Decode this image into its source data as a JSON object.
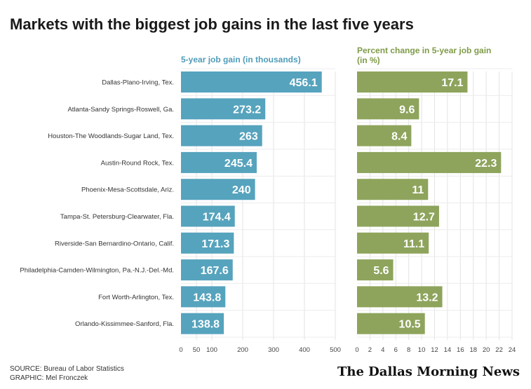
{
  "title": "Markets with the biggest job gains in the last five years",
  "source": "SOURCE: Bureau of Labor Statistics",
  "graphic": "GRAPHIC: Mel Fronczek",
  "logo_text": "The Dallas Morning News",
  "chart_data": [
    {
      "type": "bar",
      "orientation": "horizontal",
      "title": "5-year job gain (in thousands)",
      "categories": [
        "Dallas-Plano-Irving, Tex.",
        "Atlanta-Sandy Springs-Roswell, Ga.",
        "Houston-The Woodlands-Sugar Land, Tex.",
        "Austin-Round Rock, Tex.",
        "Phoenix-Mesa-Scottsdale, Ariz.",
        "Tampa-St. Petersburg-Clearwater, Fla.",
        "Riverside-San Bernardino-Ontario, Calif.",
        "Philadelphia-Camden-Wilmington, Pa.-N.J.-Del.-Md.",
        "Fort Worth-Arlington, Tex.",
        "Orlando-Kissimmee-Sanford, Fla."
      ],
      "values": [
        456.1,
        273.2,
        263,
        245.4,
        240,
        174.4,
        171.3,
        167.6,
        143.8,
        138.8
      ],
      "labels": [
        "456.1",
        "273.2",
        "263",
        "245.4",
        "240",
        "174.4",
        "171.3",
        "167.6",
        "143.8",
        "138.8"
      ],
      "xlim": [
        0,
        500
      ],
      "ticks": [
        0,
        50,
        100,
        200,
        300,
        400,
        500
      ],
      "color": "#56a3bd",
      "title_color": "#4f9cb8",
      "grid": true
    },
    {
      "type": "bar",
      "orientation": "horizontal",
      "title": "Percent change in 5-year job gain (in %)",
      "values": [
        17.1,
        9.6,
        8.4,
        22.3,
        11,
        12.7,
        11.1,
        5.6,
        13.2,
        10.5
      ],
      "labels": [
        "17.1",
        "9.6",
        "8.4",
        "22.3",
        "11",
        "12.7",
        "11.1",
        "5.6",
        "13.2",
        "10.5"
      ],
      "xlim": [
        0,
        24
      ],
      "ticks": [
        0,
        2,
        4,
        6,
        8,
        10,
        12,
        14,
        16,
        18,
        20,
        22,
        24
      ],
      "color": "#8ea45c",
      "title_color": "#7f9b49",
      "grid": true
    }
  ]
}
